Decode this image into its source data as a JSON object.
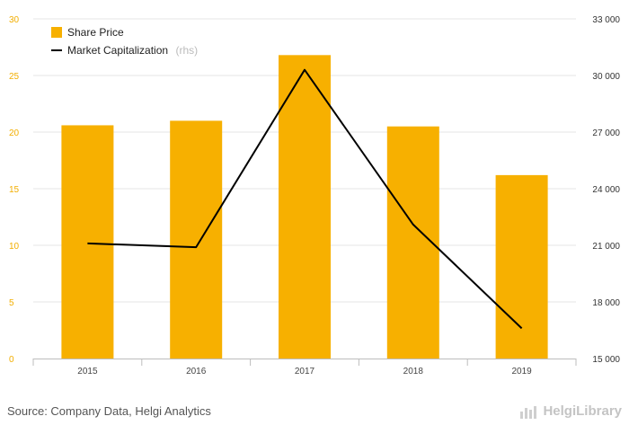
{
  "chart_data": {
    "type": "bar+line",
    "categories": [
      "2015",
      "2016",
      "2017",
      "2018",
      "2019"
    ],
    "series": [
      {
        "name": "Share Price",
        "type": "bar",
        "axis": "left",
        "values": [
          20.6,
          21.0,
          26.8,
          20.5,
          16.2
        ],
        "color": "#f7b000"
      },
      {
        "name": "Market Capitalization",
        "type": "line",
        "axis": "right",
        "values": [
          21100,
          20900,
          30300,
          22100,
          16600
        ],
        "color": "#000000"
      }
    ],
    "legend_rhs_note": "(rhs)",
    "y_left": {
      "ylim": [
        0,
        30
      ],
      "ticks": [
        "0",
        "5",
        "10",
        "15",
        "20",
        "25",
        "30"
      ]
    },
    "y_right": {
      "ylim": [
        15000,
        33000
      ],
      "ticks": [
        "15 000",
        "18 000",
        "21 000",
        "24 000",
        "27 000",
        "30 000",
        "33 000"
      ]
    },
    "grid": "horizontal",
    "legend_position": "top-left"
  },
  "footer": {
    "source": "Source: Company Data, Helgi Analytics",
    "brand": "HelgiLibrary"
  }
}
